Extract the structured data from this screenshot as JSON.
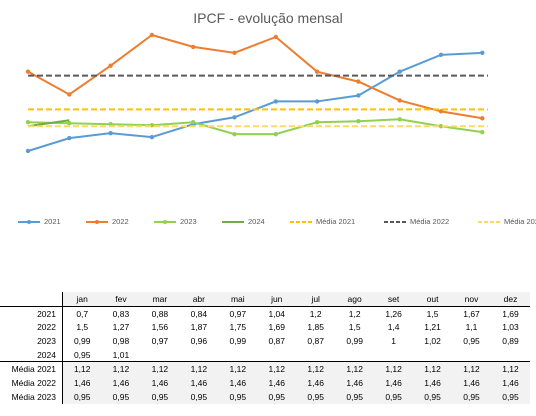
{
  "chart_data": {
    "type": "line",
    "title": "IPCF - evolução mensal",
    "categories": [
      "jan",
      "fev",
      "mar",
      "abr",
      "mai",
      "jun",
      "jul",
      "ago",
      "set",
      "out",
      "nov",
      "dez"
    ],
    "ylim": [
      0.55,
      1.95
    ],
    "grid": false,
    "legend_position": "bottom",
    "series": [
      {
        "name": "2021",
        "color": "#5b9bd5",
        "style": "solid",
        "marker": true,
        "values": [
          0.7,
          0.83,
          0.88,
          0.84,
          0.97,
          1.04,
          1.2,
          1.2,
          1.26,
          1.5,
          1.67,
          1.69
        ]
      },
      {
        "name": "2022",
        "color": "#ed7d31",
        "style": "solid",
        "marker": true,
        "values": [
          1.5,
          1.27,
          1.56,
          1.87,
          1.75,
          1.69,
          1.85,
          1.5,
          1.4,
          1.21,
          1.1,
          1.03
        ]
      },
      {
        "name": "2023",
        "color": "#92d050",
        "style": "solid",
        "marker": true,
        "values": [
          0.99,
          0.98,
          0.97,
          0.96,
          0.99,
          0.87,
          0.87,
          0.99,
          1,
          1.02,
          0.95,
          0.89
        ]
      },
      {
        "name": "2024",
        "color": "#70ad47",
        "style": "solid",
        "marker": false,
        "values": [
          0.95,
          1.01,
          null,
          null,
          null,
          null,
          null,
          null,
          null,
          null,
          null,
          null
        ]
      },
      {
        "name": "Média 2021",
        "color": "#ffc000",
        "style": "dashed",
        "marker": false,
        "values": [
          1.12,
          1.12,
          1.12,
          1.12,
          1.12,
          1.12,
          1.12,
          1.12,
          1.12,
          1.12,
          1.12,
          1.12
        ]
      },
      {
        "name": "Média 2022",
        "color": "#595959",
        "style": "dashed",
        "marker": false,
        "values": [
          1.46,
          1.46,
          1.46,
          1.46,
          1.46,
          1.46,
          1.46,
          1.46,
          1.46,
          1.46,
          1.46,
          1.46
        ]
      },
      {
        "name": "Média 2023",
        "color": "#ffd966",
        "style": "dashed",
        "marker": false,
        "values": [
          0.95,
          0.95,
          0.95,
          0.95,
          0.95,
          0.95,
          0.95,
          0.95,
          0.95,
          0.95,
          0.95,
          0.95
        ]
      }
    ]
  },
  "table": {
    "columns": [
      "jan",
      "fev",
      "mar",
      "abr",
      "mai",
      "jun",
      "jul",
      "ago",
      "set",
      "out",
      "nov",
      "dez"
    ],
    "rows": [
      {
        "label": "2021",
        "cells": [
          "0,7",
          "0,83",
          "0,88",
          "0,84",
          "0,97",
          "1,04",
          "1,2",
          "1,2",
          "1,26",
          "1,5",
          "1,67",
          "1,69"
        ]
      },
      {
        "label": "2022",
        "cells": [
          "1,5",
          "1,27",
          "1,56",
          "1,87",
          "1,75",
          "1,69",
          "1,85",
          "1,5",
          "1,4",
          "1,21",
          "1,1",
          "1,03"
        ]
      },
      {
        "label": "2023",
        "cells": [
          "0,99",
          "0,98",
          "0,97",
          "0,96",
          "0,99",
          "0,87",
          "0,87",
          "0,99",
          "1",
          "1,02",
          "0,95",
          "0,89"
        ]
      },
      {
        "label": "2024",
        "cells": [
          "0,95",
          "1,01",
          "",
          "",
          "",
          "",
          "",
          "",
          "",
          "",
          "",
          ""
        ]
      },
      {
        "label": "Média 2021",
        "cells": [
          "1,12",
          "1,12",
          "1,12",
          "1,12",
          "1,12",
          "1,12",
          "1,12",
          "1,12",
          "1,12",
          "1,12",
          "1,12",
          "1,12"
        ]
      },
      {
        "label": "Média 2022",
        "cells": [
          "1,46",
          "1,46",
          "1,46",
          "1,46",
          "1,46",
          "1,46",
          "1,46",
          "1,46",
          "1,46",
          "1,46",
          "1,46",
          "1,46"
        ]
      },
      {
        "label": "Média 2023",
        "cells": [
          "0,95",
          "0,95",
          "0,95",
          "0,95",
          "0,95",
          "0,95",
          "0,95",
          "0,95",
          "0,95",
          "0,95",
          "0,95",
          "0,95"
        ]
      }
    ]
  }
}
